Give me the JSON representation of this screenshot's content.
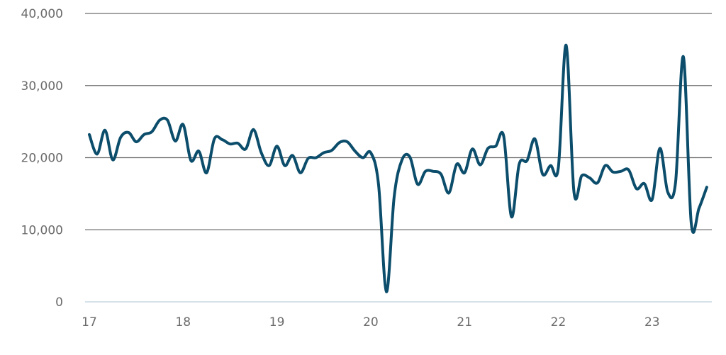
{
  "chart_data": {
    "type": "line",
    "title": "",
    "xlabel": "",
    "ylabel": "",
    "ylim": [
      0,
      40000
    ],
    "yticks": [
      0,
      10000,
      20000,
      30000,
      40000
    ],
    "ytick_labels": [
      "0",
      "10,000",
      "20,000",
      "30,000",
      "40,000"
    ],
    "xlim": [
      17,
      23.6
    ],
    "xticks": [
      17,
      18,
      19,
      20,
      21,
      22,
      23
    ],
    "xtick_labels": [
      "17",
      "18",
      "19",
      "20",
      "21",
      "22",
      "23"
    ],
    "grid": "horizontal",
    "colors": {
      "line": "#0b4d6b",
      "grid": "#6e6e6e",
      "baseline": "#c8d8e4",
      "tick_text": "#6b6b6b"
    },
    "series": [
      {
        "x": [
          17.0,
          17.083,
          17.167,
          17.25,
          17.333,
          17.417,
          17.5,
          17.583,
          17.667,
          17.75,
          17.833,
          17.917,
          18.0,
          18.083,
          18.167,
          18.25,
          18.333,
          18.417,
          18.5,
          18.583,
          18.667,
          18.75,
          18.833,
          18.917,
          19.0,
          19.083,
          19.167,
          19.25,
          19.333,
          19.417,
          19.5,
          19.583,
          19.667,
          19.75,
          19.833,
          19.917,
          20.0,
          20.083,
          20.167,
          20.25,
          20.333,
          20.417,
          20.5,
          20.583,
          20.667,
          20.75,
          20.833,
          20.917,
          21.0,
          21.083,
          21.167,
          21.25,
          21.333,
          21.417,
          21.5,
          21.583,
          21.667,
          21.75,
          21.833,
          21.917,
          22.0,
          22.083,
          22.167,
          22.25,
          22.333,
          22.417,
          22.5,
          22.583,
          22.667,
          22.75,
          22.833,
          22.917,
          23.0,
          23.083,
          23.167,
          23.25,
          23.333,
          23.417,
          23.5,
          23.583
        ],
        "y": [
          23200,
          20500,
          23800,
          19700,
          22800,
          23500,
          22200,
          23200,
          23600,
          25200,
          25200,
          22300,
          24600,
          19600,
          20900,
          17900,
          22600,
          22500,
          21900,
          22000,
          21200,
          23900,
          20700,
          18900,
          21600,
          18900,
          20300,
          17900,
          19900,
          20000,
          20700,
          21000,
          22100,
          22200,
          20900,
          20000,
          20700,
          16300,
          1400,
          14600,
          19700,
          20100,
          16300,
          18100,
          18100,
          17700,
          15100,
          19100,
          17900,
          21200,
          19000,
          21300,
          21600,
          23000,
          11800,
          19100,
          19600,
          22600,
          17700,
          18900,
          18600,
          35600,
          15200,
          17500,
          17200,
          16500,
          18900,
          18000,
          18100,
          18300,
          15700,
          16400,
          14200,
          21300,
          15200,
          16600,
          34000,
          10900,
          13000,
          15900
        ]
      }
    ]
  }
}
